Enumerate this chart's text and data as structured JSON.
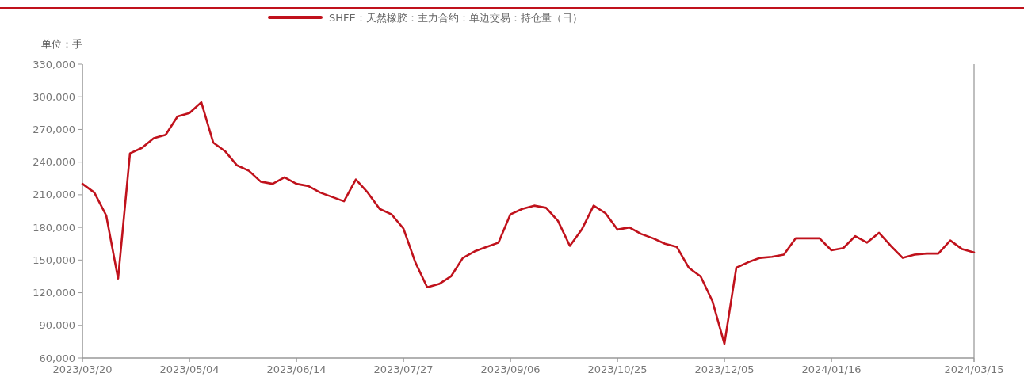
{
  "chart_data": {
    "type": "line",
    "ylabel": "单位：手",
    "legend": "top",
    "categories": [
      "2023/03/20",
      null,
      null,
      null,
      null,
      null,
      null,
      null,
      null,
      "2023/05/04",
      null,
      null,
      null,
      null,
      null,
      null,
      null,
      null,
      "2023/06/14",
      null,
      null,
      null,
      null,
      null,
      null,
      null,
      null,
      "2023/07/27",
      null,
      null,
      null,
      null,
      null,
      null,
      null,
      null,
      "2023/09/06",
      null,
      null,
      null,
      null,
      null,
      null,
      null,
      null,
      "2023/10/25",
      null,
      null,
      null,
      null,
      null,
      null,
      null,
      null,
      "2023/12/05",
      null,
      null,
      null,
      null,
      null,
      null,
      null,
      null,
      "2024/01/16",
      null,
      null,
      null,
      null,
      null,
      null,
      null,
      null,
      null,
      null,
      null,
      "2024/03/15"
    ],
    "ylim": [
      60000,
      330000
    ],
    "yticks": [
      {
        "value": 60000,
        "label": "60,000"
      },
      {
        "value": 90000,
        "label": "90,000"
      },
      {
        "value": 120000,
        "label": "120,000"
      },
      {
        "value": 150000,
        "label": "150,000"
      },
      {
        "value": 180000,
        "label": "180,000"
      },
      {
        "value": 210000,
        "label": "210,000"
      },
      {
        "value": 240000,
        "label": "240,000"
      },
      {
        "value": 270000,
        "label": "270,000"
      },
      {
        "value": 300000,
        "label": "300,000"
      },
      {
        "value": 330000,
        "label": "330,000"
      }
    ],
    "series": [
      {
        "name": "SHFE：天然橡胶：主力合约：单边交易：持仓量（日）",
        "color": "#c0121c",
        "values": [
          220000,
          212000,
          191000,
          133000,
          248000,
          253000,
          262000,
          265000,
          282000,
          285000,
          295000,
          258000,
          250000,
          237000,
          232000,
          222000,
          220000,
          226000,
          220000,
          218000,
          212000,
          208000,
          204000,
          224000,
          212000,
          197000,
          192000,
          179000,
          148000,
          125000,
          128000,
          135000,
          152000,
          158000,
          162000,
          166000,
          192000,
          197000,
          200000,
          198000,
          186000,
          163000,
          178000,
          200000,
          193000,
          178000,
          180000,
          174000,
          170000,
          165000,
          162000,
          143000,
          135000,
          112000,
          73000,
          143000,
          148000,
          152000,
          153000,
          155000,
          170000,
          170000,
          170000,
          159000,
          161000,
          172000,
          166000,
          175000,
          163000,
          152000,
          155000,
          156000,
          156000,
          168000,
          160000,
          157000
        ]
      }
    ]
  }
}
